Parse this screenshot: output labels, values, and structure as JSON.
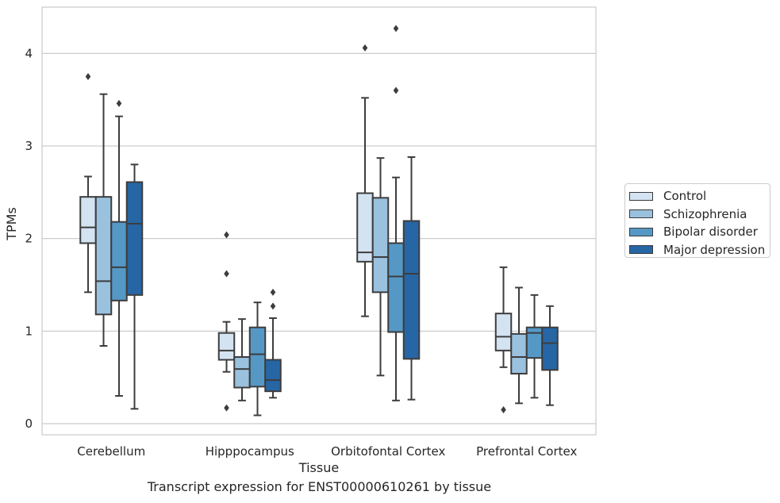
{
  "chart_data": {
    "type": "box",
    "title": "",
    "caption": "Transcript expression for ENST00000610261 by tissue",
    "xlabel": "Tissue",
    "ylabel": "TPMs",
    "ylim": [
      -0.12,
      4.5
    ],
    "yticks": [
      0,
      1,
      2,
      3,
      4
    ],
    "grid": true,
    "legend_position": "right",
    "categories": [
      "Cerebellum",
      "Hipppocampus",
      "Orbitofontal Cortex",
      "Prefrontal Cortex"
    ],
    "series": [
      {
        "name": "Control",
        "color": "#d4e3f2",
        "boxes": [
          {
            "whislo": 1.42,
            "q1": 1.95,
            "med": 2.12,
            "q3": 2.45,
            "whishi": 2.67,
            "fliers": [
              3.75
            ]
          },
          {
            "whislo": 0.56,
            "q1": 0.69,
            "med": 0.79,
            "q3": 0.98,
            "whishi": 1.1,
            "fliers": [
              1.62,
              2.04,
              0.17
            ]
          },
          {
            "whislo": 1.16,
            "q1": 1.75,
            "med": 1.85,
            "q3": 2.49,
            "whishi": 3.52,
            "fliers": [
              4.06
            ]
          },
          {
            "whislo": 0.61,
            "q1": 0.79,
            "med": 0.94,
            "q3": 1.19,
            "whishi": 1.69,
            "fliers": [
              0.15
            ]
          }
        ]
      },
      {
        "name": "Schizophrenia",
        "color": "#9ac1de",
        "boxes": [
          {
            "whislo": 0.84,
            "q1": 1.18,
            "med": 1.54,
            "q3": 2.45,
            "whishi": 3.56,
            "fliers": []
          },
          {
            "whislo": 0.25,
            "q1": 0.39,
            "med": 0.59,
            "q3": 0.72,
            "whishi": 1.13,
            "fliers": []
          },
          {
            "whislo": 0.52,
            "q1": 1.42,
            "med": 1.8,
            "q3": 2.44,
            "whishi": 2.87,
            "fliers": []
          },
          {
            "whislo": 0.22,
            "q1": 0.54,
            "med": 0.72,
            "q3": 0.97,
            "whishi": 1.47,
            "fliers": []
          }
        ]
      },
      {
        "name": "Bipolar disorder",
        "color": "#5598c6",
        "boxes": [
          {
            "whislo": 0.3,
            "q1": 1.33,
            "med": 1.69,
            "q3": 2.18,
            "whishi": 3.32,
            "fliers": [
              3.46
            ]
          },
          {
            "whislo": 0.09,
            "q1": 0.4,
            "med": 0.75,
            "q3": 1.04,
            "whishi": 1.31,
            "fliers": []
          },
          {
            "whislo": 0.25,
            "q1": 0.99,
            "med": 1.59,
            "q3": 1.95,
            "whishi": 2.66,
            "fliers": [
              3.6,
              4.27
            ]
          },
          {
            "whislo": 0.28,
            "q1": 0.71,
            "med": 0.98,
            "q3": 1.04,
            "whishi": 1.39,
            "fliers": []
          }
        ]
      },
      {
        "name": "Major depression",
        "color": "#2766a5",
        "boxes": [
          {
            "whislo": 0.16,
            "q1": 1.39,
            "med": 2.16,
            "q3": 2.61,
            "whishi": 2.8,
            "fliers": []
          },
          {
            "whislo": 0.28,
            "q1": 0.35,
            "med": 0.47,
            "q3": 0.69,
            "whishi": 1.14,
            "fliers": [
              1.27,
              1.42
            ]
          },
          {
            "whislo": 0.26,
            "q1": 0.7,
            "med": 1.62,
            "q3": 2.19,
            "whishi": 2.88,
            "fliers": []
          },
          {
            "whislo": 0.2,
            "q1": 0.58,
            "med": 0.87,
            "q3": 1.04,
            "whishi": 1.27,
            "fliers": []
          }
        ]
      }
    ]
  }
}
